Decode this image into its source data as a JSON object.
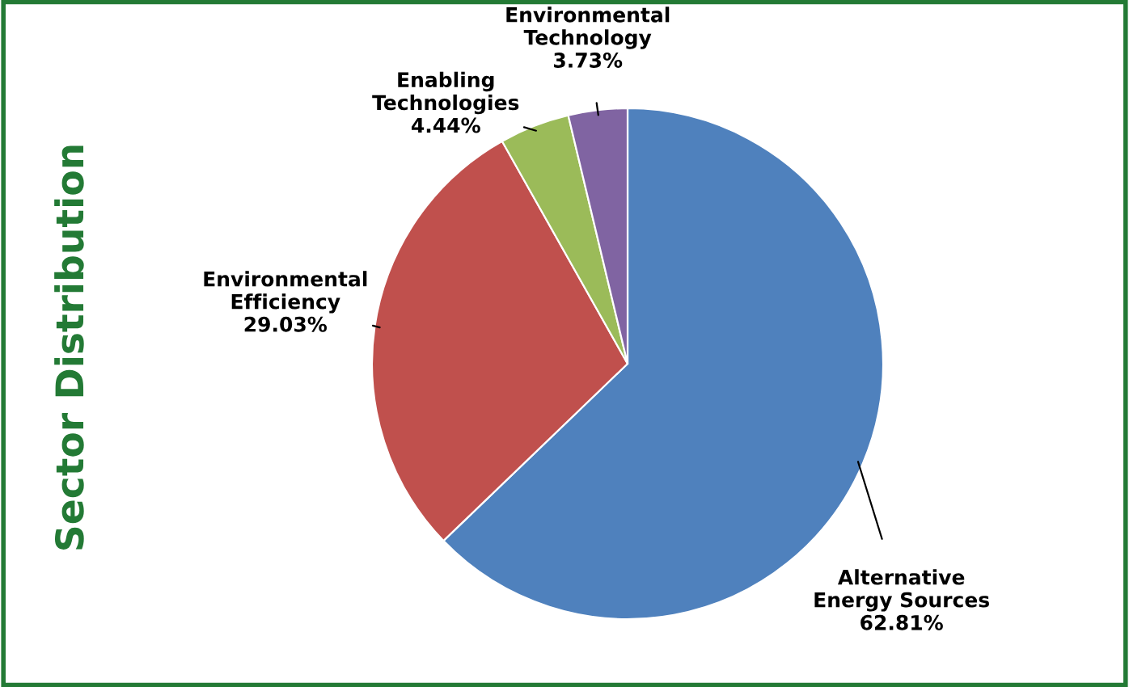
{
  "chart_data": {
    "type": "pie",
    "title": "Sector Distribution",
    "categories": [
      "Alternative\nEnergy Sources",
      "Environmental\nEfficiency",
      "Enabling\nTechnologies",
      "Environmental\nTechnology"
    ],
    "values": [
      62.81,
      29.03,
      4.44,
      3.73
    ],
    "value_labels": [
      "62.81%",
      "29.03%",
      "4.44%",
      "3.73%"
    ],
    "colors": [
      "#4f81bd",
      "#c0504d",
      "#9bbb59",
      "#8064a2"
    ]
  }
}
